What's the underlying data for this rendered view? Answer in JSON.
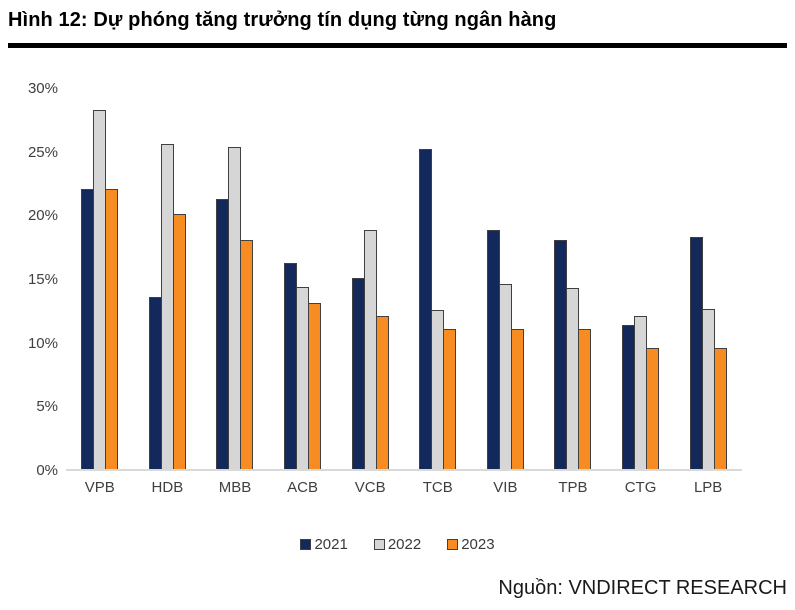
{
  "header": {
    "title": "Hình 12: Dự phóng tăng trưởng tín dụng từng ngân hàng"
  },
  "source": {
    "label": "Nguồn: VNDIRECT RESEARCH"
  },
  "chart_data": {
    "type": "bar",
    "title": "Dự phóng tăng trưởng tín dụng từng ngân hàng",
    "categories": [
      "VPB",
      "HDB",
      "MBB",
      "ACB",
      "VCB",
      "TCB",
      "VIB",
      "TPB",
      "CTG",
      "LPB"
    ],
    "series": [
      {
        "name": "2021",
        "color": "#14295B",
        "values": [
          22.0,
          13.5,
          21.2,
          16.2,
          15.0,
          25.1,
          18.8,
          18.0,
          11.3,
          18.2
        ]
      },
      {
        "name": "2022",
        "color": "#D6D6D6",
        "values": [
          28.2,
          25.5,
          25.3,
          14.3,
          18.8,
          12.5,
          14.5,
          14.2,
          12.0,
          12.6
        ]
      },
      {
        "name": "2023",
        "color": "#F68C22",
        "values": [
          22.0,
          20.0,
          18.0,
          13.0,
          12.0,
          11.0,
          11.0,
          11.0,
          9.5,
          9.5
        ]
      }
    ],
    "xlabel": "",
    "ylabel": "",
    "ylim": [
      0,
      30
    ],
    "yticks": [
      "0%",
      "5%",
      "10%",
      "15%",
      "20%",
      "25%",
      "30%"
    ],
    "unit": "%",
    "grid": false,
    "legend_position": "bottom",
    "bar_border_color": "#404040",
    "baseline_color": "#d9d9d9",
    "tick_text_color": "#404040"
  }
}
